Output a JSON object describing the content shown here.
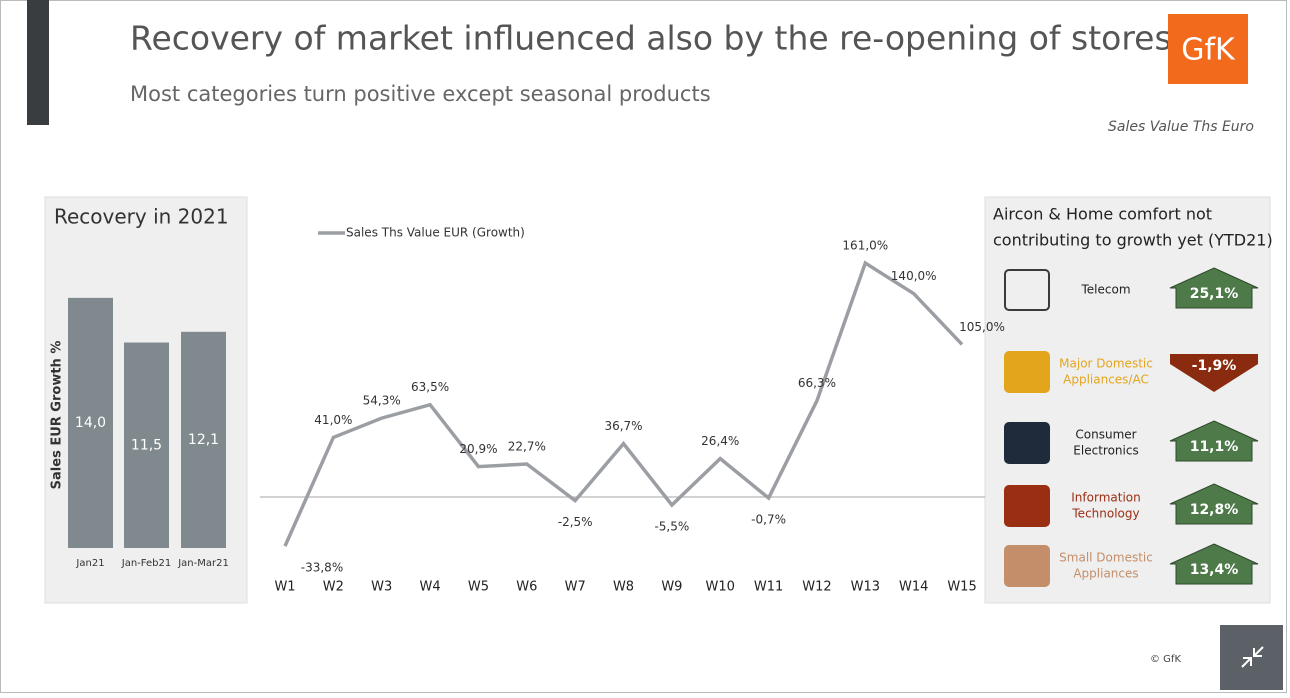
{
  "header": {
    "title": "Recovery of market influenced also by the re-opening of stores",
    "subtitle": "Most categories turn positive except seasonal products",
    "note": "Sales Value Ths Euro",
    "logo": "GfK"
  },
  "chart_data": [
    {
      "type": "bar",
      "title": "Recovery in 2021",
      "y_label": "Sales EUR Growth %",
      "categories": [
        "Jan21",
        "Jan-Feb21",
        "Jan-Mar21"
      ],
      "values": [
        14.0,
        11.5,
        12.1
      ],
      "value_labels": [
        "14,0",
        "11,5",
        "12,1"
      ],
      "color": "#7f898e",
      "ylim": [
        0,
        15
      ]
    },
    {
      "type": "line",
      "categories": [
        "W1",
        "W2",
        "W3",
        "W4",
        "W5",
        "W6",
        "W7",
        "W8",
        "W9",
        "W10",
        "W11",
        "W12",
        "W13",
        "W14",
        "W15"
      ],
      "series": [
        {
          "name": "Sales Ths Value EUR (Growth)",
          "color": "#9b9fa4",
          "values": [
            -33.8,
            41.0,
            54.3,
            63.5,
            20.9,
            22.7,
            -2.5,
            36.7,
            -5.5,
            26.4,
            -0.7,
            66.3,
            161.0,
            140.0,
            105.0
          ],
          "value_labels": [
            "-33,8%",
            "41,0%",
            "54,3%",
            "63,5%",
            "20,9%",
            "22,7%",
            "-2,5%",
            "36,7%",
            "-5,5%",
            "26,4%",
            "-0,7%",
            "66,3%",
            "161,0%",
            "140,0%",
            "105,0%"
          ]
        }
      ],
      "ylim": [
        -40,
        180
      ]
    }
  ],
  "panel": {
    "title_lines": [
      "Aircon & Home comfort not",
      "contributing to growth yet (YTD21)"
    ],
    "items": [
      {
        "label_lines": [
          "Telecom"
        ],
        "change": "25,1%",
        "color": "#222222"
      },
      {
        "label_lines": [
          "Major Domestic",
          "Appliances/AC"
        ],
        "change": "-1,9%",
        "color": "#e3a51c"
      },
      {
        "label_lines": [
          "Consumer",
          "Electronics"
        ],
        "change": "11,1%",
        "color": "#222222"
      },
      {
        "label_lines": [
          "Information",
          "Technology"
        ],
        "change": "12,8%",
        "color": "#9a2e12"
      },
      {
        "label_lines": [
          "Small Domestic",
          "Appliances"
        ],
        "change": "13,4%",
        "color": "#c58e6a"
      }
    ]
  },
  "footer": "© GfK"
}
